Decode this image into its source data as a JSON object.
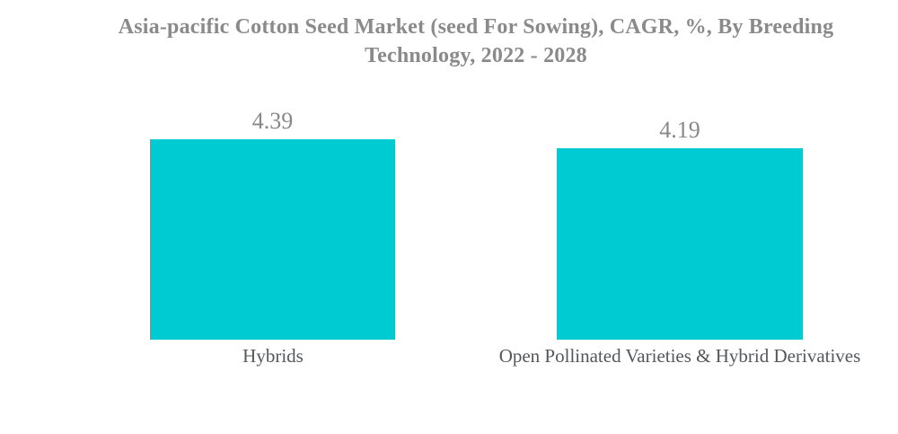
{
  "header": {
    "title": "Asia-pacific Cotton Seed Market (seed For Sowing), CAGR, %, By Breeding Technology, 2022 - 2028"
  },
  "chart_data": {
    "type": "bar",
    "title": "Asia-pacific Cotton Seed Market (seed For Sowing), CAGR, %, By Breeding Technology, 2022 - 2028",
    "categories": [
      "Hybrids",
      "Open Pollinated Varieties & Hybrid Derivatives"
    ],
    "values": [
      4.39,
      4.19
    ],
    "value_labels": [
      "4.39",
      "4.19"
    ],
    "xlabel": "",
    "ylabel": "",
    "ylim": [
      0,
      4.39
    ],
    "unit": "CAGR %",
    "grid": false,
    "axes_visible": false,
    "legend": "none",
    "colors": {
      "bar": "#00cbd2",
      "title_text": "#8a8a8a",
      "value_text": "#87888a",
      "category_text": "#55575a",
      "background": "#ffffff"
    }
  }
}
